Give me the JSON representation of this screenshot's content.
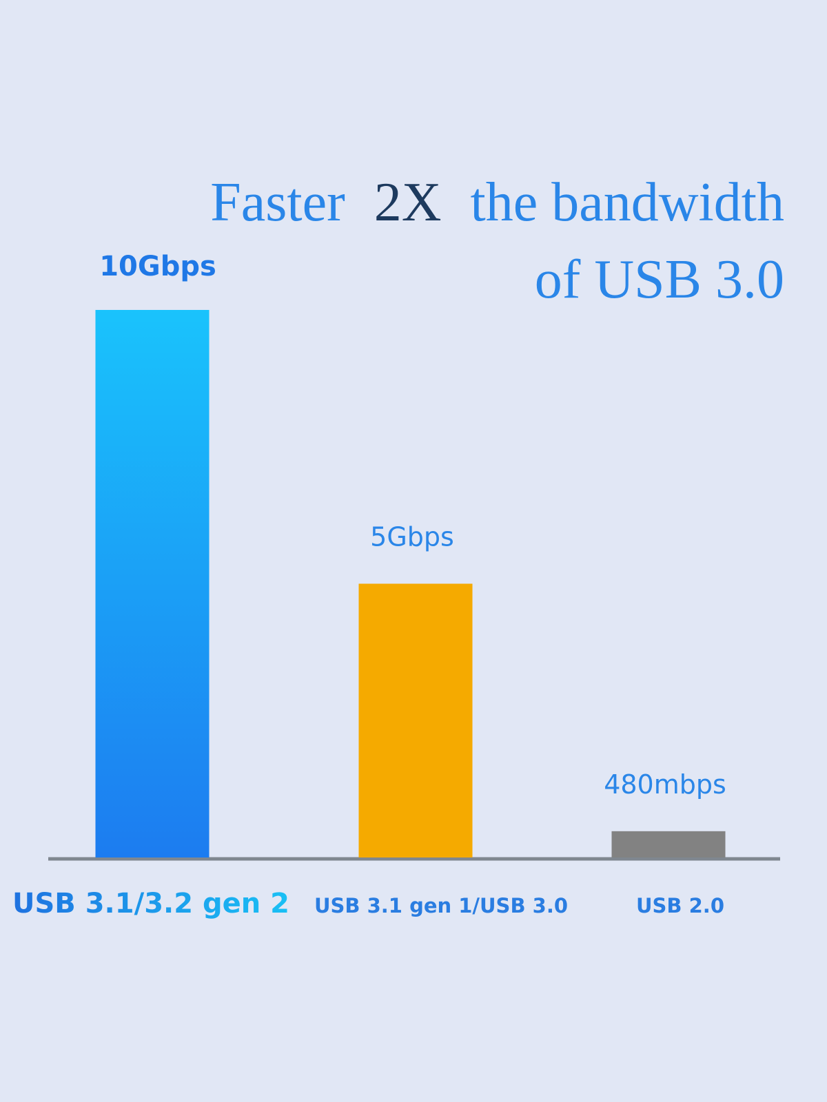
{
  "chart_data": {
    "type": "bar",
    "title": [
      "Faster",
      "2X",
      "the bandwidth",
      "of USB 3.0"
    ],
    "categories": [
      "USB 3.1/3.2 gen 2",
      "USB 3.1 gen 1/USB 3.0",
      "USB 2.0"
    ],
    "values": [
      10000,
      5000,
      480
    ],
    "value_labels": [
      "10Gbps",
      "5Gbps",
      "480mbps"
    ],
    "colors": [
      [
        "#1ac3fc",
        "#1c7cf0"
      ],
      "#f5aa00",
      "#828282"
    ],
    "ylim": [
      0,
      10000
    ]
  }
}
